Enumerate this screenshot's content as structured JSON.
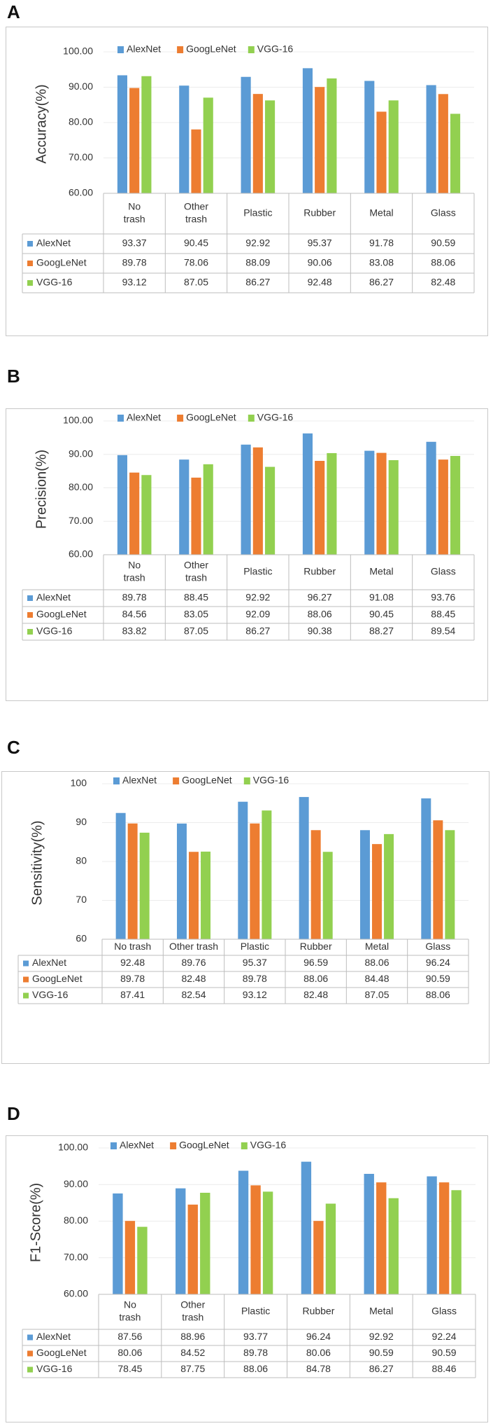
{
  "colors": {
    "AlexNet": "#5b9bd5",
    "GoogLeNet": "#ed7d31",
    "VGG-16": "#92d050",
    "border": "#c8c8c8",
    "grid": "#d9d9d9",
    "text": "#333333"
  },
  "chart_data": [
    {
      "type": "bar",
      "panel": "A",
      "ylabel": "Accuracy(%)",
      "ylim": [
        60,
        100
      ],
      "ytick_labels": [
        "100.00",
        "90.00",
        "80.00",
        "70.00",
        "60.00"
      ],
      "categories": [
        "No trash",
        "Other trash",
        "Plastic",
        "Rubber",
        "Metal",
        "Glass"
      ],
      "series": [
        {
          "name": "AlexNet",
          "values": [
            93.37,
            90.45,
            92.92,
            95.37,
            91.78,
            90.59
          ]
        },
        {
          "name": "GoogLeNet",
          "values": [
            89.78,
            78.06,
            88.09,
            90.06,
            83.08,
            88.06
          ]
        },
        {
          "name": "VGG-16",
          "values": [
            93.12,
            87.05,
            86.27,
            92.48,
            86.27,
            82.48
          ]
        }
      ],
      "table": [
        [
          "93.37",
          "90.45",
          "92.92",
          "95.37",
          "91.78",
          "90.59"
        ],
        [
          "89.78",
          "78.06",
          "88.09",
          "90.06",
          "83.08",
          "88.06"
        ],
        [
          "93.12",
          "87.05",
          "86.27",
          "92.48",
          "86.27",
          "82.48"
        ]
      ],
      "legend": "top"
    },
    {
      "type": "bar",
      "panel": "B",
      "ylabel": "Precision(%)",
      "ylim": [
        60,
        100
      ],
      "ytick_labels": [
        "100.00",
        "90.00",
        "80.00",
        "70.00",
        "60.00"
      ],
      "categories": [
        "No trash",
        "Other trash",
        "Plastic",
        "Rubber",
        "Metal",
        "Glass"
      ],
      "series": [
        {
          "name": "AlexNet",
          "values": [
            89.78,
            88.45,
            92.92,
            96.27,
            91.08,
            93.76
          ]
        },
        {
          "name": "GoogLeNet",
          "values": [
            84.56,
            83.05,
            92.09,
            88.06,
            90.45,
            88.45
          ]
        },
        {
          "name": "VGG-16",
          "values": [
            83.82,
            87.05,
            86.27,
            90.38,
            88.27,
            89.54
          ]
        }
      ],
      "table": [
        [
          "89.78",
          "88.45",
          "92.92",
          "96.27",
          "91.08",
          "93.76"
        ],
        [
          "84.56",
          "83.05",
          "92.09",
          "88.06",
          "90.45",
          "88.45"
        ],
        [
          "83.82",
          "87.05",
          "86.27",
          "90.38",
          "88.27",
          "89.54"
        ]
      ],
      "legend": "top"
    },
    {
      "type": "bar",
      "panel": "C",
      "ylabel": "Sensitivity(%)",
      "ylim": [
        60,
        100
      ],
      "ytick_labels": [
        "100",
        "90",
        "80",
        "70",
        "60"
      ],
      "categories": [
        "No trash",
        "Other trash",
        "Plastic",
        "Rubber",
        "Metal",
        "Glass"
      ],
      "series": [
        {
          "name": "AlexNet",
          "values": [
            92.48,
            89.76,
            95.37,
            96.59,
            88.06,
            96.24
          ]
        },
        {
          "name": "GoogLeNet",
          "values": [
            89.78,
            82.48,
            89.78,
            88.06,
            84.48,
            90.59
          ]
        },
        {
          "name": "VGG-16",
          "values": [
            87.41,
            82.54,
            93.12,
            82.48,
            87.05,
            88.06
          ]
        }
      ],
      "table": [
        [
          "92.48",
          "89.76",
          "95.37",
          "96.59",
          "88.06",
          "96.24"
        ],
        [
          "89.78",
          "82.48",
          "89.78",
          "88.06",
          "84.48",
          "90.59"
        ],
        [
          "87.41",
          "82.54",
          "93.12",
          "82.48",
          "87.05",
          "88.06"
        ]
      ],
      "legend": "top"
    },
    {
      "type": "bar",
      "panel": "D",
      "ylabel": "F1-Score(%)",
      "ylim": [
        60,
        100
      ],
      "ytick_labels": [
        "100.00",
        "90.00",
        "80.00",
        "70.00",
        "60.00"
      ],
      "categories": [
        "No trash",
        "Other trash",
        "Plastic",
        "Rubber",
        "Metal",
        "Glass"
      ],
      "series": [
        {
          "name": "AlexNet",
          "values": [
            87.56,
            88.96,
            93.77,
            96.24,
            92.92,
            92.24
          ]
        },
        {
          "name": "GoogLeNet",
          "values": [
            80.06,
            84.52,
            89.78,
            80.06,
            90.59,
            90.59
          ]
        },
        {
          "name": "VGG-16",
          "values": [
            78.45,
            87.75,
            88.06,
            84.78,
            86.27,
            88.46
          ]
        }
      ],
      "table": [
        [
          "87.56",
          "88.96",
          "93.77",
          "96.24",
          "92.92",
          "92.24"
        ],
        [
          "80.06",
          "84.52",
          "89.78",
          "80.06",
          "90.59",
          "90.59"
        ],
        [
          "78.45",
          "87.75",
          "88.06",
          "84.78",
          "86.27",
          "88.46"
        ]
      ],
      "legend": "top"
    }
  ]
}
